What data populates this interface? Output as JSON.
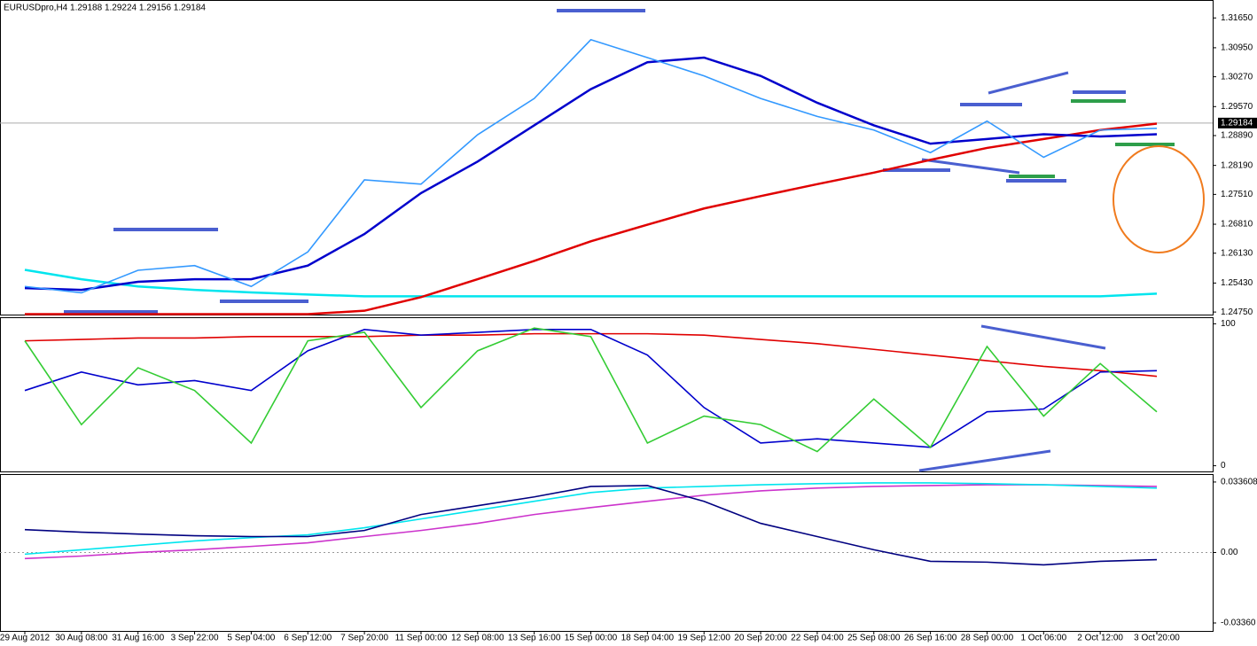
{
  "chart_data": [
    {
      "type": "line",
      "title": "EURUSDpro,H4  1.29188 1.29224 1.29156 1.29184",
      "categories": [
        "29 Aug 2012",
        "30 Aug 08:00",
        "31 Aug 16:00",
        "3 Sep 22:00",
        "5 Sep 04:00",
        "6 Sep 12:00",
        "7 Sep 20:00",
        "11 Sep 00:00",
        "12 Sep 08:00",
        "13 Sep 16:00",
        "15 Sep 00:00",
        "18 Sep 04:00",
        "19 Sep 12:00",
        "20 Sep 20:00",
        "22 Sep 04:00",
        "25 Sep 08:00",
        "26 Sep 16:00",
        "28 Sep 00:00",
        "1 Oct 06:00",
        "2 Oct 12:00",
        "3 Oct 20:00"
      ],
      "series": [
        {
          "color": "#00e5ee",
          "values": [
            1.2574,
            1.2552,
            1.2535,
            1.2527,
            1.2521,
            1.2516,
            1.2512,
            1.2512,
            1.2512,
            1.2512,
            1.2512,
            1.2512,
            1.2512,
            1.2512,
            1.2512,
            1.2512,
            1.2512,
            1.2512,
            1.2512,
            1.2512,
            1.2518
          ]
        },
        {
          "color": "#e00000",
          "values": [
            1.247,
            1.247,
            1.247,
            1.247,
            1.247,
            1.247,
            1.2478,
            1.251,
            1.2552,
            1.2595,
            1.2641,
            1.268,
            1.2718,
            1.2747,
            1.2775,
            1.2802,
            1.2832,
            1.286,
            1.2881,
            1.2902,
            1.2917
          ]
        },
        {
          "color": "#0000cc",
          "values": [
            1.2531,
            1.2527,
            1.2546,
            1.2552,
            1.2552,
            1.2584,
            1.2658,
            1.2754,
            1.2828,
            1.2913,
            1.2998,
            1.3061,
            1.3072,
            1.3029,
            1.2966,
            1.2913,
            1.287,
            1.2881,
            1.2892,
            1.2887,
            1.2892
          ]
        },
        {
          "color": "#3399ff",
          "values": [
            1.2535,
            1.252,
            1.2573,
            1.2584,
            1.2535,
            1.2616,
            1.2785,
            1.2775,
            1.2891,
            1.2976,
            1.3114,
            1.3072,
            1.3029,
            1.2976,
            1.2934,
            1.2902,
            1.2849,
            1.2923,
            1.2838,
            1.2902,
            1.2906
          ]
        }
      ],
      "ylim": [
        1.2469,
        1.3205
      ],
      "yticks": [
        {
          "value": 1.3165,
          "label": "1.31650"
        },
        {
          "value": 1.3095,
          "label": "1.30950"
        },
        {
          "value": 1.3027,
          "label": "1.30270"
        },
        {
          "value": 1.2957,
          "label": "1.29570"
        },
        {
          "value": 1.2889,
          "label": "1.28890"
        },
        {
          "value": 1.2819,
          "label": "1.28190"
        },
        {
          "value": 1.2751,
          "label": "1.27510"
        },
        {
          "value": 1.2681,
          "label": "1.26810"
        },
        {
          "value": 1.2613,
          "label": "1.26130"
        },
        {
          "value": 1.2543,
          "label": "1.25430"
        },
        {
          "value": 1.2475,
          "label": "1.24750"
        }
      ],
      "price_label": {
        "value": 1.29184,
        "label": "1.29184"
      }
    },
    {
      "type": "line",
      "series": [
        {
          "color": "#e00000",
          "values": [
            88,
            89,
            90,
            90,
            91,
            91,
            91,
            92,
            92,
            93,
            93,
            93,
            92,
            89,
            86,
            82,
            78,
            74,
            70,
            67,
            63
          ]
        },
        {
          "color": "#0000cc",
          "values": [
            53,
            66,
            57,
            60,
            53,
            81,
            96,
            92,
            94,
            96,
            96,
            78,
            41,
            16,
            19,
            16,
            13,
            38,
            40,
            66,
            67
          ]
        },
        {
          "color": "#33cc33",
          "values": [
            88,
            29,
            69,
            53,
            16,
            88,
            94,
            41,
            81,
            97,
            91,
            16,
            35,
            29,
            10,
            47,
            13,
            84,
            35,
            72,
            38
          ]
        }
      ],
      "ylim": [
        -4,
        104
      ],
      "yticks": [
        100,
        0
      ]
    },
    {
      "type": "line",
      "series": [
        {
          "color": "#cc33cc",
          "values": [
            -0.0029,
            -0.0017,
            0,
            0.0013,
            0.0029,
            0.0046,
            0.0076,
            0.0105,
            0.0139,
            0.0181,
            0.0214,
            0.0244,
            0.0273,
            0.0294,
            0.0307,
            0.0315,
            0.0319,
            0.0323,
            0.0323,
            0.0319,
            0.0315
          ]
        },
        {
          "color": "#00e5ee",
          "values": [
            -0.0008,
            0.0013,
            0.0034,
            0.0055,
            0.0071,
            0.0084,
            0.0118,
            0.016,
            0.0202,
            0.0244,
            0.0286,
            0.0307,
            0.0315,
            0.0323,
            0.0328,
            0.0332,
            0.0332,
            0.0328,
            0.0323,
            0.0315,
            0.0307
          ]
        },
        {
          "color": "#000080",
          "values": [
            0.0109,
            0.0097,
            0.0088,
            0.008,
            0.0076,
            0.0076,
            0.0105,
            0.0181,
            0.0223,
            0.0265,
            0.0315,
            0.0319,
            0.0244,
            0.0139,
            0.0076,
            0.0013,
            -0.0042,
            -0.0046,
            -0.0059,
            -0.0042,
            -0.0034
          ]
        }
      ],
      "ylim": [
        -0.0374,
        0.03696
      ],
      "yticks": [
        {
          "value": 0.033608,
          "label": "0.033608"
        },
        {
          "value": 0,
          "label": "0.00"
        },
        {
          "value": -0.0336,
          "label": "-0.03360"
        }
      ]
    }
  ]
}
